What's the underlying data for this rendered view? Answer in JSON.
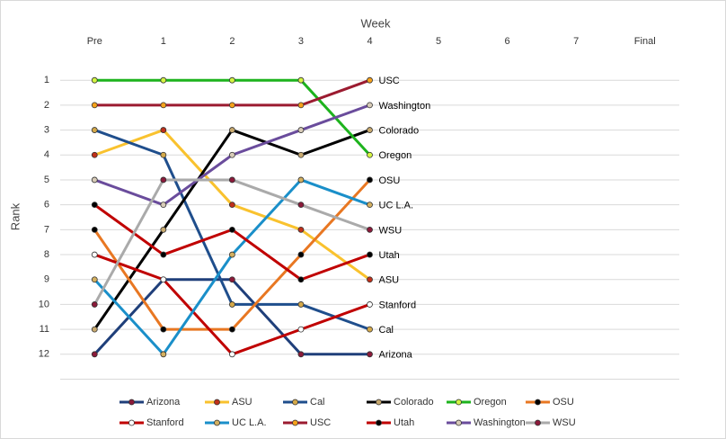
{
  "chart_data": {
    "type": "line",
    "xlabel": "Week",
    "ylabel": "Rank",
    "categories": [
      "Pre",
      "1",
      "2",
      "3",
      "4",
      "5",
      "6",
      "7",
      "Final"
    ],
    "ylim": [
      13,
      0
    ],
    "y_inverted": true,
    "yticks": [
      1,
      2,
      3,
      4,
      5,
      6,
      7,
      8,
      9,
      10,
      11,
      12
    ],
    "grid": true,
    "legend": "bottom",
    "end_labels": true,
    "series": [
      {
        "name": "Arizona",
        "color": "#1f3f7a",
        "marker_color": "#8b1a3a",
        "values": [
          12,
          9,
          9,
          12,
          12,
          null,
          null,
          null,
          null
        ]
      },
      {
        "name": "ASU",
        "color": "#f9c22e",
        "marker_color": "#c0301a",
        "values": [
          4,
          3,
          6,
          7,
          9,
          null,
          null,
          null,
          null
        ]
      },
      {
        "name": "Cal",
        "color": "#1f4e8c",
        "marker_color": "#d4a94a",
        "values": [
          3,
          4,
          10,
          10,
          11,
          null,
          null,
          null,
          null
        ]
      },
      {
        "name": "Colorado",
        "color": "#000000",
        "marker_color": "#c8a96e",
        "values": [
          11,
          7,
          3,
          4,
          3,
          null,
          null,
          null,
          null
        ]
      },
      {
        "name": "Oregon",
        "color": "#1db31d",
        "marker_color": "#d4f542",
        "values": [
          1,
          1,
          1,
          1,
          4,
          null,
          null,
          null,
          null
        ]
      },
      {
        "name": "OSU",
        "color": "#e87722",
        "marker_color": "#000000",
        "values": [
          7,
          11,
          11,
          8,
          5,
          null,
          null,
          null,
          null
        ]
      },
      {
        "name": "Stanford",
        "color": "#c00000",
        "marker_color": "#ffffff",
        "values": [
          8,
          9,
          12,
          11,
          10,
          null,
          null,
          null,
          null
        ]
      },
      {
        "name": "UC L.A.",
        "color": "#1a8fc9",
        "marker_color": "#d4b060",
        "values": [
          9,
          12,
          8,
          5,
          6,
          null,
          null,
          null,
          null
        ]
      },
      {
        "name": "USC",
        "color": "#9b1b30",
        "marker_color": "#f7a21b",
        "values": [
          2,
          2,
          2,
          2,
          1,
          null,
          null,
          null,
          null
        ]
      },
      {
        "name": "Utah",
        "color": "#c00000",
        "marker_color": "#000000",
        "values": [
          6,
          8,
          7,
          9,
          8,
          null,
          null,
          null,
          null
        ]
      },
      {
        "name": "Washington",
        "color": "#6a4c9c",
        "marker_color": "#d8ccb8",
        "values": [
          5,
          6,
          4,
          3,
          2,
          null,
          null,
          null,
          null
        ]
      },
      {
        "name": "WSU",
        "color": "#aaaaaa",
        "marker_color": "#8b1a3a",
        "values": [
          10,
          5,
          5,
          6,
          7,
          null,
          null,
          null,
          null
        ]
      }
    ]
  }
}
